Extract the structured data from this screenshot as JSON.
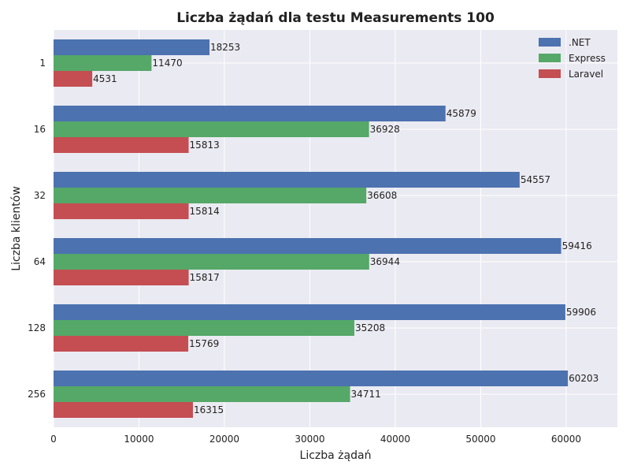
{
  "chart_data": {
    "type": "bar",
    "orientation": "horizontal",
    "title": "Liczba żądań dla testu Measurements 100",
    "xlabel": "Liczba żądań",
    "ylabel": "Liczba klientów",
    "categories": [
      "1",
      "16",
      "32",
      "64",
      "128",
      "256"
    ],
    "series": [
      {
        "name": ".NET",
        "color": "#4c72b0",
        "values": [
          18253,
          45879,
          54557,
          59416,
          59906,
          60203
        ]
      },
      {
        "name": "Express",
        "color": "#55a868",
        "values": [
          11470,
          36928,
          36608,
          36944,
          35208,
          34711
        ]
      },
      {
        "name": "Laravel",
        "color": "#c44e52",
        "values": [
          4531,
          15813,
          15814,
          15817,
          15769,
          16315
        ]
      }
    ],
    "xlim": [
      0,
      66000
    ],
    "xticks": [
      0,
      10000,
      20000,
      30000,
      40000,
      50000,
      60000
    ],
    "grid": true,
    "legend_position": "top-right",
    "background_color": "#eaeaf2"
  }
}
